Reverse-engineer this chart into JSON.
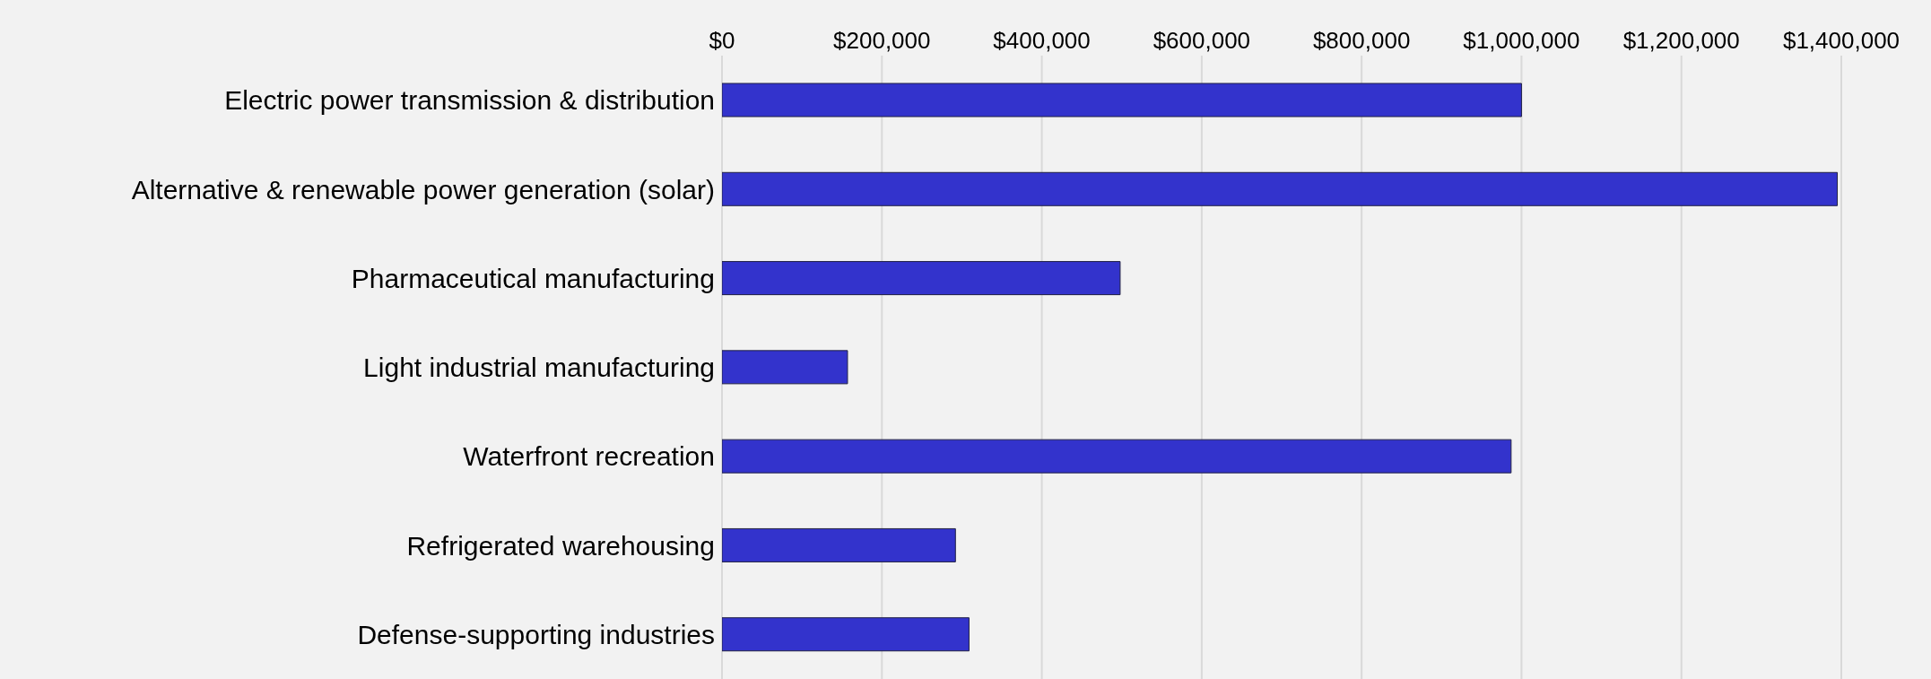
{
  "chart_data": {
    "type": "bar",
    "orientation": "horizontal",
    "categories": [
      "Electric power transmission & distribution",
      "Alternative & renewable power generation (solar)",
      "Pharmaceutical manufacturing",
      "Light industrial manufacturing",
      "Waterfront recreation",
      "Refrigerated warehousing",
      "Defense-supporting industries"
    ],
    "values": [
      1000000,
      1395000,
      498000,
      157000,
      987000,
      292000,
      309000
    ],
    "color": "#3333cc",
    "xlim": [
      0,
      1400000
    ],
    "xticks": [
      {
        "value": 0,
        "label": "$0"
      },
      {
        "value": 200000,
        "label": "$200,000"
      },
      {
        "value": 400000,
        "label": "$400,000"
      },
      {
        "value": 600000,
        "label": "$600,000"
      },
      {
        "value": 800000,
        "label": "$800,000"
      },
      {
        "value": 1000000,
        "label": "$1,000,000"
      },
      {
        "value": 1200000,
        "label": "$1,200,000"
      },
      {
        "value": 1400000,
        "label": "$1,400,000"
      }
    ],
    "grid": "x"
  }
}
